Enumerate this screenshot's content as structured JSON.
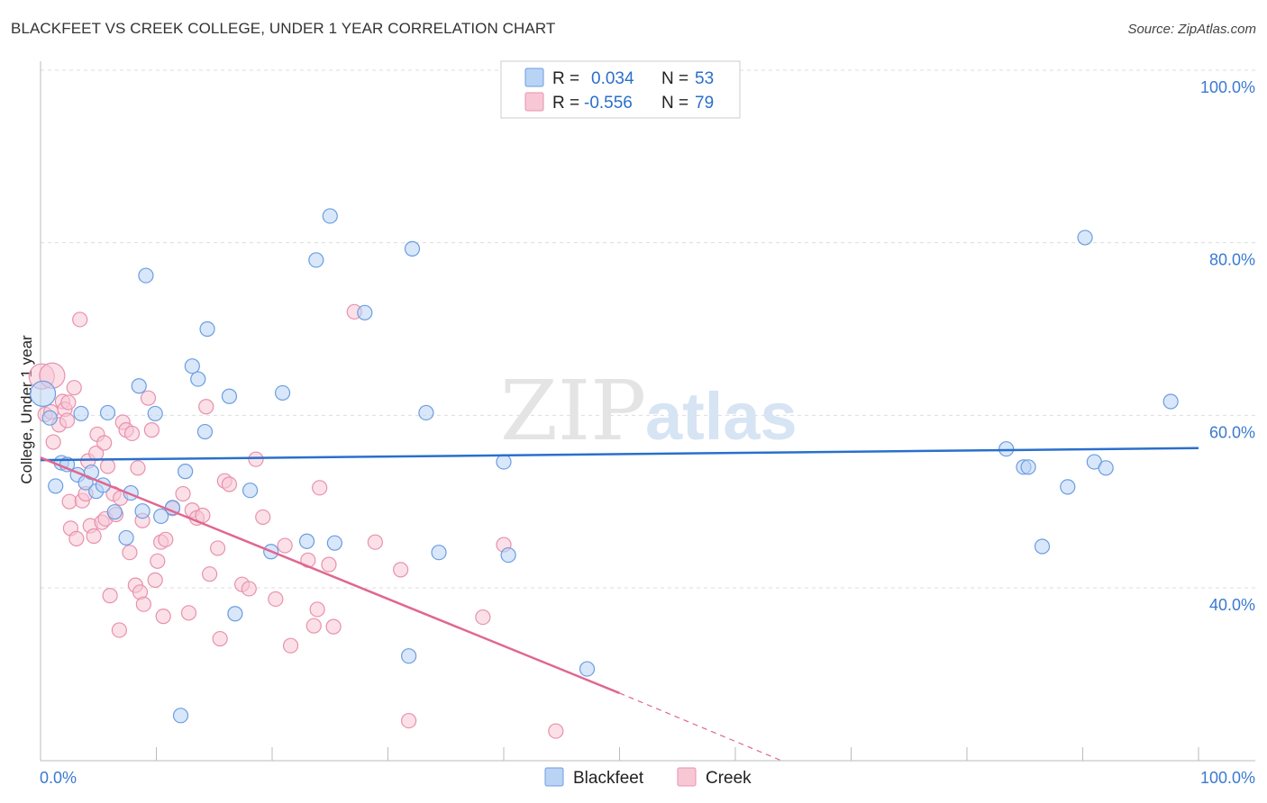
{
  "title": "BLACKFEET VS CREEK COLLEGE, UNDER 1 YEAR CORRELATION CHART",
  "source": "Source: ZipAtlas.com",
  "watermark": {
    "zip": "ZIP",
    "atlas": "atlas"
  },
  "colors": {
    "blackfeet_fill": "#b9d3f5",
    "blackfeet_stroke": "#6a9de0",
    "blackfeet_line": "#2a6fcc",
    "creek_fill": "#f8c7d6",
    "creek_stroke": "#e891ad",
    "creek_line": "#e0678f",
    "tick_text": "#3a7ad0",
    "grid": "#dddddd"
  },
  "legend_top": [
    {
      "r_label": "R =",
      "r_value": "0.034",
      "n_label": "N =",
      "n_value": "53"
    },
    {
      "r_label": "R =",
      "r_value": "-0.556",
      "n_label": "N =",
      "n_value": "79"
    }
  ],
  "chart_data": {
    "type": "scatter",
    "title": "BLACKFEET VS CREEK COLLEGE, UNDER 1 YEAR CORRELATION CHART",
    "xlabel": "",
    "ylabel": "College, Under 1 year",
    "xlim": [
      0,
      100
    ],
    "ylim": [
      20,
      100
    ],
    "x_tick_labels": [
      "0.0%",
      "100.0%"
    ],
    "y_tick_labels": [
      "100.0%",
      "80.0%",
      "60.0%",
      "40.0%"
    ],
    "y_ticks": [
      100,
      80,
      60,
      40
    ],
    "grid": true,
    "legend_position": "bottom-center",
    "series": [
      {
        "name": "Blackfeet",
        "trend": {
          "x": [
            0,
            100
          ],
          "y": [
            54.8,
            56.2
          ]
        },
        "points": [
          [
            0.2,
            62.5
          ],
          [
            0.8,
            59.7
          ],
          [
            1.3,
            51.8
          ],
          [
            1.8,
            54.5
          ],
          [
            2.3,
            54.3
          ],
          [
            3.5,
            60.2
          ],
          [
            3.2,
            53.1
          ],
          [
            3.9,
            52.2
          ],
          [
            4.4,
            53.4
          ],
          [
            4.8,
            51.2
          ],
          [
            5.4,
            51.9
          ],
          [
            5.8,
            60.3
          ],
          [
            6.4,
            48.8
          ],
          [
            7.4,
            45.8
          ],
          [
            7.8,
            51.0
          ],
          [
            8.5,
            63.4
          ],
          [
            8.8,
            48.9
          ],
          [
            9.1,
            76.2
          ],
          [
            9.9,
            60.2
          ],
          [
            10.4,
            48.3
          ],
          [
            11.4,
            49.3
          ],
          [
            12.5,
            53.5
          ],
          [
            13.1,
            65.7
          ],
          [
            13.6,
            64.2
          ],
          [
            14.2,
            58.1
          ],
          [
            14.4,
            70.0
          ],
          [
            16.3,
            62.2
          ],
          [
            16.8,
            37.0
          ],
          [
            18.1,
            51.3
          ],
          [
            19.9,
            44.2
          ],
          [
            20.9,
            62.6
          ],
          [
            23.0,
            45.4
          ],
          [
            23.8,
            78.0
          ],
          [
            25.0,
            83.1
          ],
          [
            25.4,
            45.2
          ],
          [
            28.0,
            71.9
          ],
          [
            31.8,
            32.1
          ],
          [
            32.1,
            79.3
          ],
          [
            33.3,
            60.3
          ],
          [
            34.4,
            44.1
          ],
          [
            40.0,
            54.6
          ],
          [
            40.4,
            43.8
          ],
          [
            47.2,
            30.6
          ],
          [
            12.1,
            25.2
          ],
          [
            83.4,
            56.1
          ],
          [
            84.9,
            54.0
          ],
          [
            85.3,
            54.0
          ],
          [
            86.5,
            44.8
          ],
          [
            88.7,
            51.7
          ],
          [
            90.2,
            80.6
          ],
          [
            91.0,
            54.6
          ],
          [
            92.0,
            53.9
          ],
          [
            97.6,
            61.6
          ]
        ]
      },
      {
        "name": "Creek",
        "trend": {
          "x": [
            0,
            50
          ],
          "y": [
            55.1,
            27.8
          ]
        },
        "trend_dashed": {
          "x": [
            50,
            64
          ],
          "y": [
            27.8,
            19.5
          ]
        },
        "points": [
          [
            0.1,
            64.5
          ],
          [
            0.4,
            60.1
          ],
          [
            0.9,
            60.4
          ],
          [
            1.1,
            56.9
          ],
          [
            1.6,
            58.9
          ],
          [
            1.9,
            61.6
          ],
          [
            2.1,
            60.7
          ],
          [
            2.3,
            59.4
          ],
          [
            2.5,
            50.0
          ],
          [
            2.6,
            46.9
          ],
          [
            2.9,
            63.2
          ],
          [
            3.1,
            45.7
          ],
          [
            3.4,
            71.1
          ],
          [
            3.6,
            50.1
          ],
          [
            3.9,
            50.9
          ],
          [
            4.1,
            54.7
          ],
          [
            4.3,
            47.2
          ],
          [
            4.6,
            46.0
          ],
          [
            4.8,
            55.6
          ],
          [
            4.9,
            57.8
          ],
          [
            5.3,
            47.6
          ],
          [
            5.5,
            56.8
          ],
          [
            5.6,
            48.0
          ],
          [
            5.8,
            54.1
          ],
          [
            6.0,
            39.1
          ],
          [
            6.3,
            50.9
          ],
          [
            6.5,
            48.5
          ],
          [
            6.8,
            35.1
          ],
          [
            6.9,
            50.4
          ],
          [
            7.1,
            59.2
          ],
          [
            7.4,
            58.3
          ],
          [
            7.7,
            44.1
          ],
          [
            7.9,
            57.9
          ],
          [
            8.2,
            40.3
          ],
          [
            8.4,
            53.9
          ],
          [
            8.6,
            39.5
          ],
          [
            8.8,
            47.8
          ],
          [
            8.9,
            38.1
          ],
          [
            9.3,
            62.0
          ],
          [
            9.6,
            58.3
          ],
          [
            9.9,
            40.9
          ],
          [
            10.1,
            43.1
          ],
          [
            10.4,
            45.3
          ],
          [
            10.6,
            36.7
          ],
          [
            10.8,
            45.6
          ],
          [
            11.4,
            49.2
          ],
          [
            12.3,
            50.9
          ],
          [
            12.8,
            37.1
          ],
          [
            13.1,
            49.0
          ],
          [
            13.5,
            48.1
          ],
          [
            14.0,
            48.4
          ],
          [
            14.3,
            61.0
          ],
          [
            14.6,
            41.6
          ],
          [
            15.3,
            44.6
          ],
          [
            15.5,
            34.1
          ],
          [
            15.9,
            52.4
          ],
          [
            16.3,
            52.0
          ],
          [
            17.4,
            40.4
          ],
          [
            18.0,
            39.9
          ],
          [
            18.6,
            54.9
          ],
          [
            19.2,
            48.2
          ],
          [
            20.3,
            38.7
          ],
          [
            21.1,
            44.9
          ],
          [
            21.6,
            33.3
          ],
          [
            23.1,
            43.2
          ],
          [
            23.6,
            35.6
          ],
          [
            23.9,
            37.5
          ],
          [
            24.1,
            51.6
          ],
          [
            24.9,
            42.7
          ],
          [
            25.3,
            35.5
          ],
          [
            27.1,
            72.0
          ],
          [
            28.9,
            45.3
          ],
          [
            31.1,
            42.1
          ],
          [
            31.8,
            24.6
          ],
          [
            38.2,
            36.6
          ],
          [
            40.0,
            45.0
          ],
          [
            44.5,
            23.4
          ],
          [
            1.0,
            64.6
          ],
          [
            2.4,
            61.5
          ]
        ]
      }
    ]
  },
  "legend_bottom": [
    {
      "label": "Blackfeet"
    },
    {
      "label": "Creek"
    }
  ]
}
